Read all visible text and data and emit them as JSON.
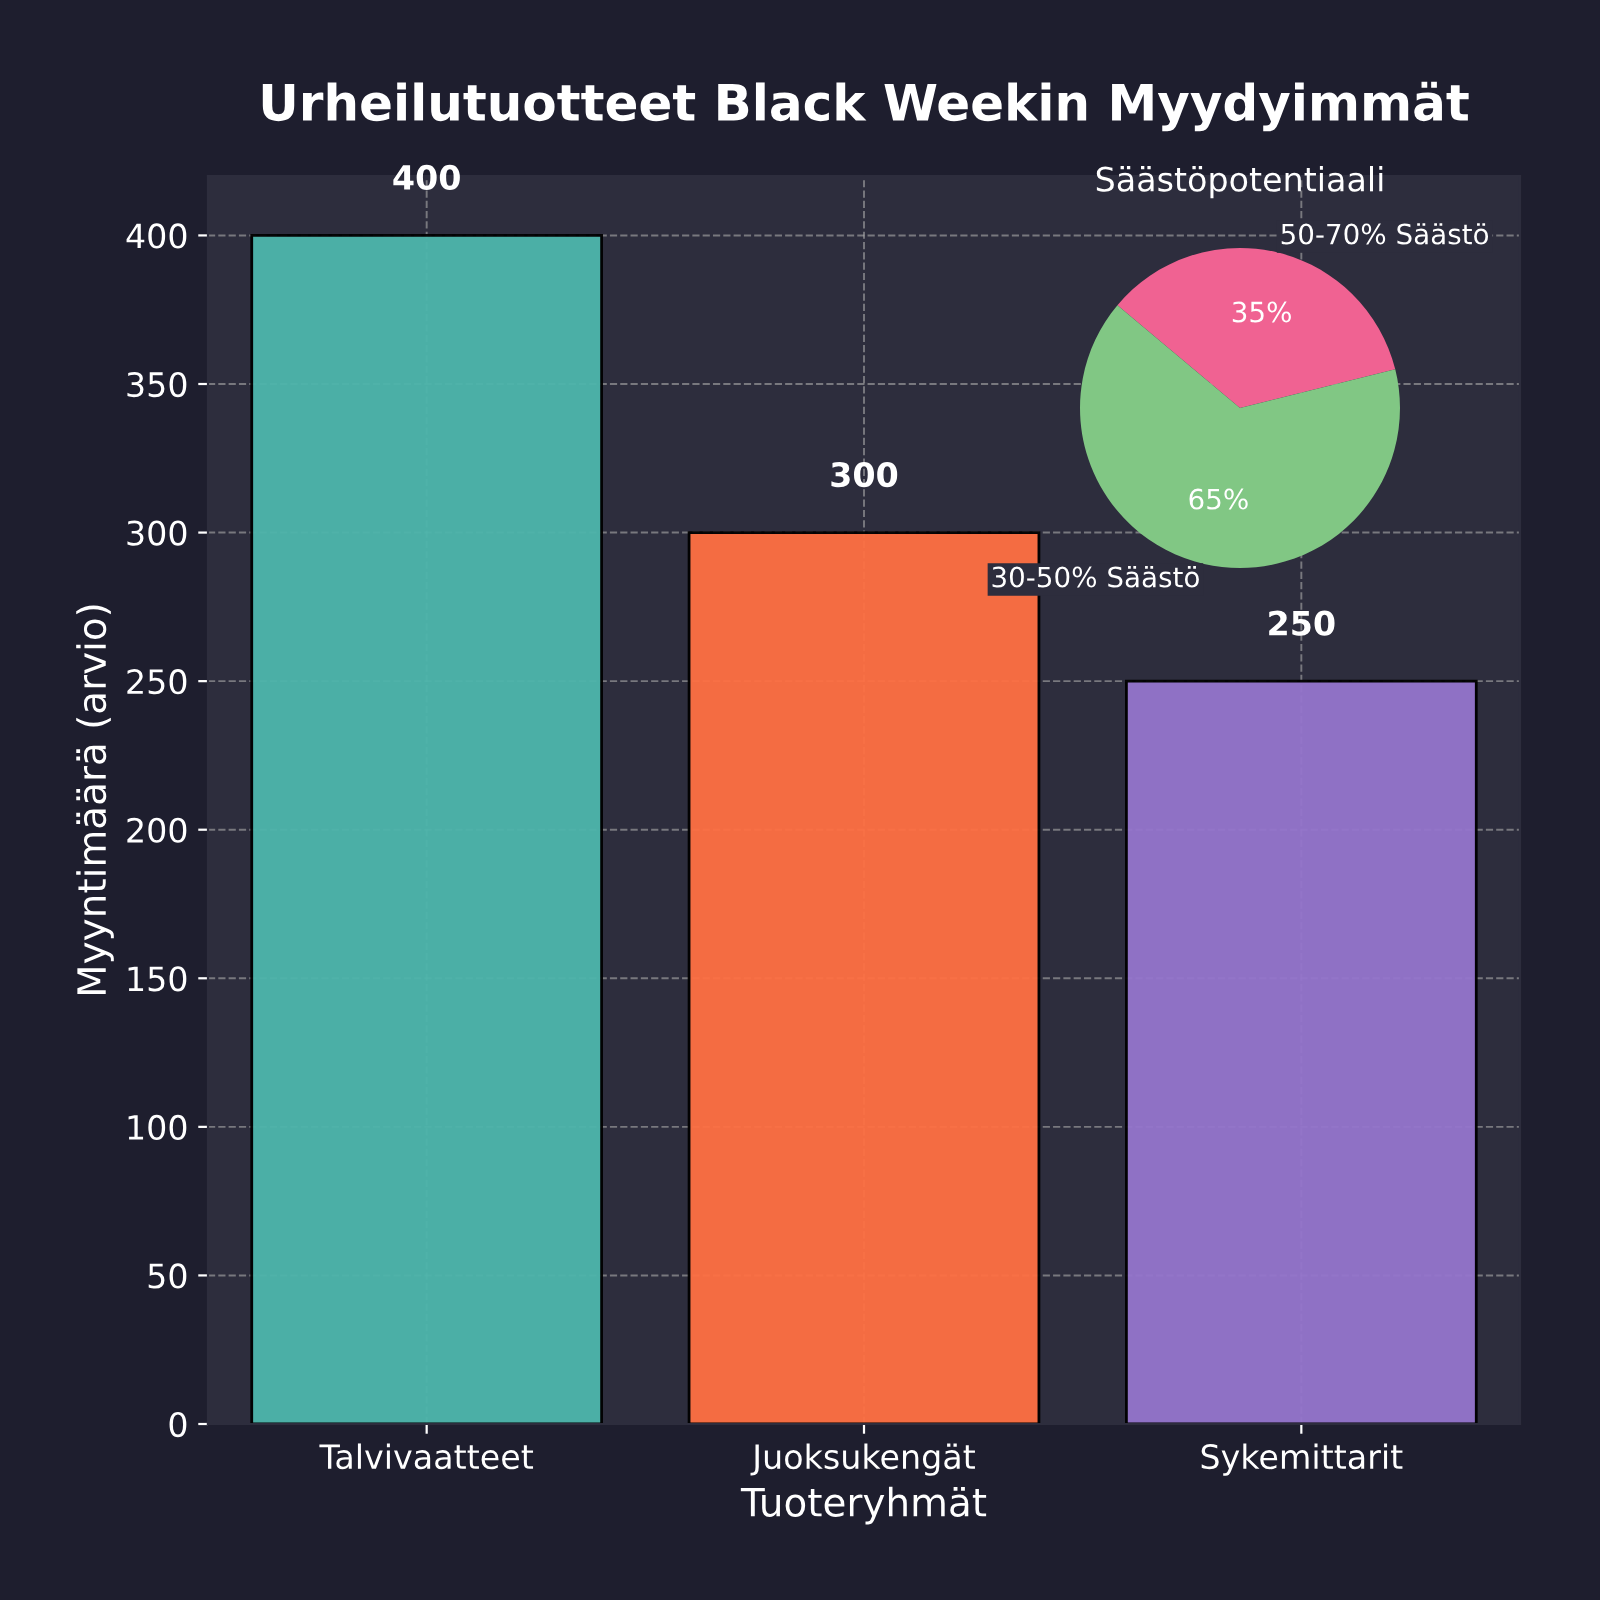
{
  "chart_data": [
    {
      "type": "bar",
      "title": "Urheilutuotteet Black Weekin Myydyimmät",
      "xlabel": "Tuoteryhmät",
      "ylabel": "Myyntimäärä (arvio)",
      "categories": [
        "Talvivaatteet",
        "Juoksukengät",
        "Sykemittarit"
      ],
      "values": [
        400,
        300,
        250
      ],
      "colors": [
        "#4db6ac",
        "#ff7043",
        "#9575cd"
      ],
      "ylim": [
        0,
        420
      ],
      "yticks": [
        0,
        50,
        100,
        150,
        200,
        250,
        300,
        350,
        400
      ],
      "grid": true,
      "data_labels": true
    },
    {
      "type": "pie",
      "title": "Säästöpotentiaali",
      "categories": [
        "50-70% Säästö",
        "30-50% Säästö"
      ],
      "values": [
        35,
        65
      ],
      "value_labels": [
        "35%",
        "65%"
      ],
      "colors": [
        "#f06292",
        "#81c784"
      ]
    }
  ]
}
